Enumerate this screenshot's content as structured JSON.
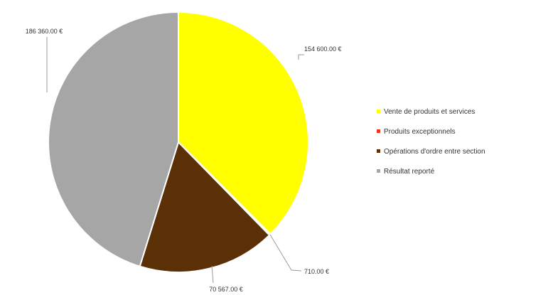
{
  "chart_data": {
    "type": "pie",
    "title": "",
    "categories": [
      "Vente de produits et services",
      "Produits exceptionnels",
      "Opérations d'ordre entre section",
      "Résultat reporté"
    ],
    "values": [
      154600.0,
      710.0,
      70567.0,
      186360.0
    ],
    "data_labels": [
      "154 600.00 €",
      "710.00 €",
      "70 567.00 €",
      "186 360.00 €"
    ],
    "colors": [
      "#ffff00",
      "#e8371c",
      "#5c3007",
      "#a6a6a6"
    ],
    "legend_position": "right"
  }
}
